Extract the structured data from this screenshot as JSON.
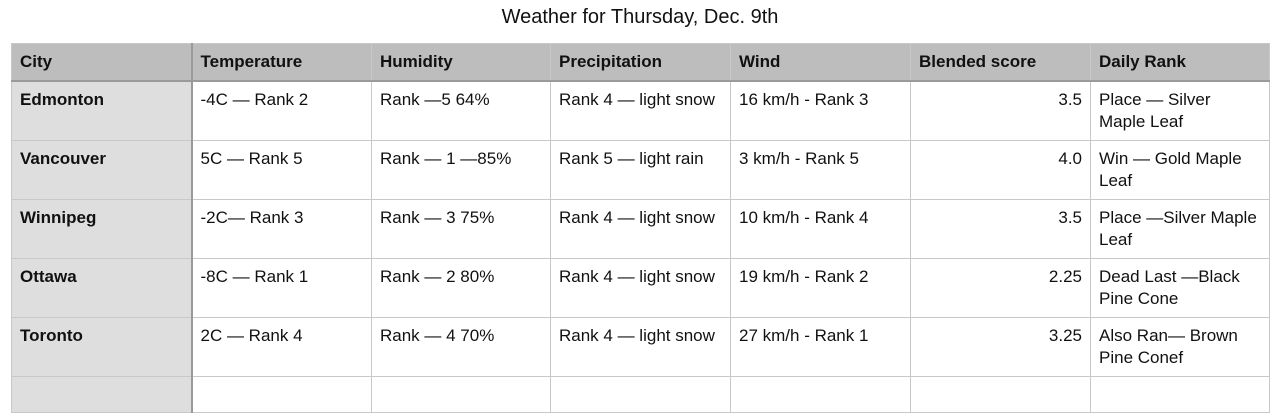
{
  "title": "Weather for Thursday, Dec. 9th",
  "table": {
    "headers": [
      "City",
      "Temperature",
      "Humidity",
      "Precipitation",
      "Wind",
      "Blended score",
      "Daily Rank"
    ],
    "rows": [
      [
        "Edmonton",
        "-4C — Rank 2",
        "Rank —5  64%",
        "Rank 4 — light snow",
        "16 km/h - Rank 3",
        "3.5",
        "Place — Silver Maple Leaf"
      ],
      [
        "Vancouver",
        "5C — Rank 5",
        "Rank — 1 —85%",
        "Rank 5 — light rain",
        "3 km/h - Rank 5",
        "4.0",
        "Win — Gold Maple Leaf"
      ],
      [
        "Winnipeg",
        "-2C— Rank 3",
        "Rank — 3 75%",
        "Rank 4 — light snow",
        "10 km/h - Rank 4",
        "3.5",
        "Place —Silver Maple Leaf"
      ],
      [
        "Ottawa",
        "-8C — Rank 1",
        "Rank — 2 80%",
        "Rank 4 — light snow",
        "19 km/h - Rank 2",
        "2.25",
        "Dead Last —Black Pine Cone"
      ],
      [
        "Toronto",
        "2C — Rank 4",
        "Rank — 4 70%",
        "Rank 4 — light snow",
        "27 km/h - Rank 1",
        "3.25",
        "Also Ran— Brown Pine Conef"
      ]
    ]
  }
}
